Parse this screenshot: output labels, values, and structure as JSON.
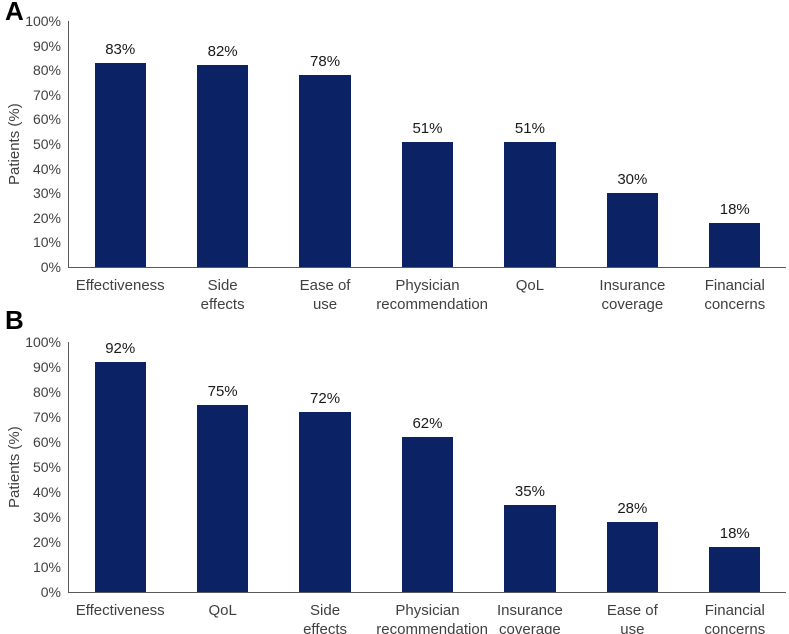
{
  "colors": {
    "bar": "#0b2265",
    "axis_line": "#595959",
    "axis_text": "#404040",
    "value_text": "#1a1a1a",
    "panel_label_text": "#000000",
    "background": "#ffffff"
  },
  "chart_data": [
    {
      "type": "bar",
      "panel": "A",
      "title": "",
      "xlabel": "",
      "ylabel": "Patients (%)",
      "ylim": [
        0,
        100
      ],
      "yticks": [
        "0%",
        "10%",
        "20%",
        "30%",
        "40%",
        "50%",
        "60%",
        "70%",
        "80%",
        "90%",
        "100%"
      ],
      "grid": false,
      "legend": "none",
      "bar_color": "#0b2265",
      "categories": [
        "Effectiveness",
        "Side\neffects",
        "Ease of\nuse",
        "Physician\nrecommendation",
        "QoL",
        "Insurance\ncoverage",
        "Financial\nconcerns"
      ],
      "values": [
        83,
        82,
        78,
        51,
        51,
        30,
        18
      ],
      "value_labels": [
        "83%",
        "82%",
        "78%",
        "51%",
        "51%",
        "30%",
        "18%"
      ]
    },
    {
      "type": "bar",
      "panel": "B",
      "title": "",
      "xlabel": "",
      "ylabel": "Patients (%)",
      "ylim": [
        0,
        100
      ],
      "yticks": [
        "0%",
        "10%",
        "20%",
        "30%",
        "40%",
        "50%",
        "60%",
        "70%",
        "80%",
        "90%",
        "100%"
      ],
      "grid": false,
      "legend": "none",
      "bar_color": "#0b2265",
      "categories": [
        "Effectiveness",
        "QoL",
        "Side\neffects",
        "Physician\nrecommendation",
        "Insurance\ncoverage",
        "Ease of\nuse",
        "Financial\nconcerns"
      ],
      "values": [
        92,
        75,
        72,
        62,
        35,
        28,
        18
      ],
      "value_labels": [
        "92%",
        "75%",
        "72%",
        "62%",
        "35%",
        "28%",
        "18%"
      ]
    }
  ]
}
